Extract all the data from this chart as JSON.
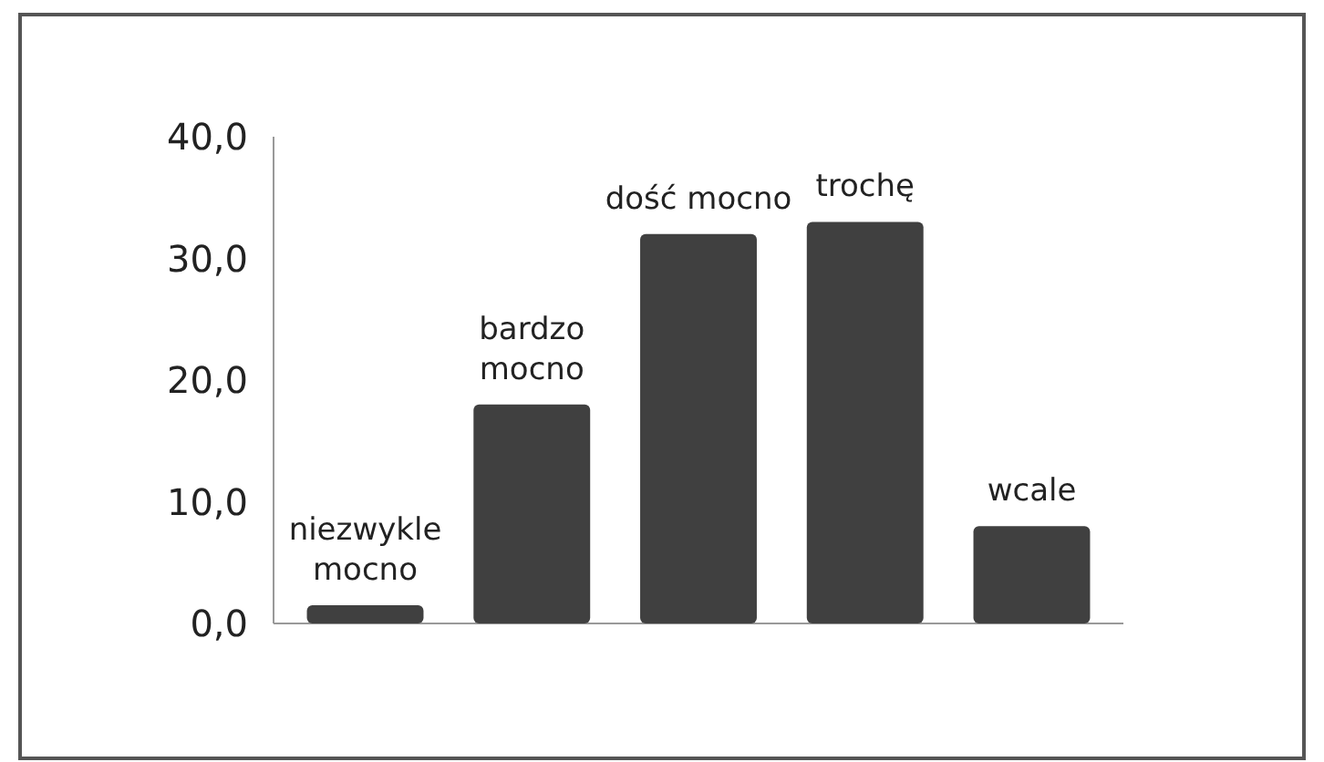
{
  "chart_data": {
    "type": "bar",
    "categories": [
      [
        "niezwykle",
        "mocno"
      ],
      [
        "bardzo",
        "mocno"
      ],
      [
        "dość mocno"
      ],
      [
        "trochę"
      ],
      [
        "wcale"
      ]
    ],
    "values": [
      1.5,
      18,
      32,
      33,
      8
    ],
    "color": "#404040",
    "ylim": [
      0,
      40
    ],
    "yticks": [
      {
        "value": 0,
        "label": "0,0"
      },
      {
        "value": 10,
        "label": "10,0"
      },
      {
        "value": 20,
        "label": "20,0"
      },
      {
        "value": 30,
        "label": "30,0"
      },
      {
        "value": 40,
        "label": "40,0"
      }
    ],
    "grid": false
  }
}
